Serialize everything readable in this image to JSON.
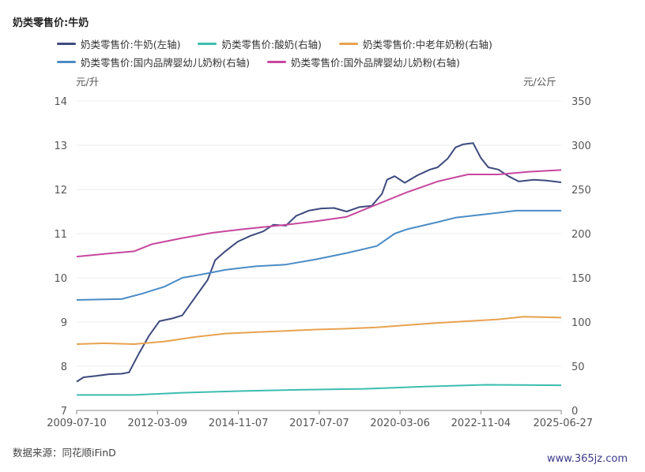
{
  "chart_data": {
    "type": "line",
    "title": "奶类零售价:牛奶",
    "y_left_unit": "元/升",
    "y_right_unit": "元/公斤",
    "ylim_left": [
      7,
      14
    ],
    "yticks_left": [
      "14",
      "13",
      "12",
      "11",
      "10",
      "9",
      "8",
      "7"
    ],
    "ylim_right": [
      0,
      350
    ],
    "yticks_right": [
      "350",
      "300",
      "250",
      "200",
      "150",
      "100",
      "50",
      "0"
    ],
    "x_range": [
      "2009-07-10",
      "2025-06-27"
    ],
    "xticks": [
      "2009-07-10",
      "2012-03-09",
      "2014-11-07",
      "2017-07-07",
      "2020-03-06",
      "2022-11-04",
      "2025-06-27"
    ],
    "grid": "horizontal",
    "legend_position": "top",
    "series": [
      {
        "name": "奶类零售价:牛奶(左轴)",
        "axis": "left",
        "color": "#3d4a7e",
        "points": [
          [
            "2009-07-10",
            7.65
          ],
          [
            "2009-10-01",
            7.75
          ],
          [
            "2010-03-01",
            7.78
          ],
          [
            "2010-08-01",
            7.82
          ],
          [
            "2011-01-01",
            7.83
          ],
          [
            "2011-04-01",
            7.86
          ],
          [
            "2011-08-01",
            8.3
          ],
          [
            "2011-12-01",
            8.7
          ],
          [
            "2012-04-01",
            9.02
          ],
          [
            "2012-09-01",
            9.08
          ],
          [
            "2013-01-01",
            9.15
          ],
          [
            "2013-06-01",
            9.55
          ],
          [
            "2013-11-01",
            9.95
          ],
          [
            "2014-02-01",
            10.4
          ],
          [
            "2014-06-01",
            10.6
          ],
          [
            "2014-11-01",
            10.82
          ],
          [
            "2015-04-01",
            10.95
          ],
          [
            "2015-09-01",
            11.05
          ],
          [
            "2016-01-01",
            11.2
          ],
          [
            "2016-06-01",
            11.18
          ],
          [
            "2016-10-01",
            11.4
          ],
          [
            "2017-03-01",
            11.52
          ],
          [
            "2017-08-01",
            11.57
          ],
          [
            "2018-01-01",
            11.58
          ],
          [
            "2018-06-01",
            11.5
          ],
          [
            "2018-11-01",
            11.6
          ],
          [
            "2019-04-01",
            11.63
          ],
          [
            "2019-08-01",
            11.9
          ],
          [
            "2019-10-01",
            12.22
          ],
          [
            "2020-01-01",
            12.3
          ],
          [
            "2020-05-01",
            12.15
          ],
          [
            "2020-10-01",
            12.32
          ],
          [
            "2021-03-01",
            12.45
          ],
          [
            "2021-06-01",
            12.5
          ],
          [
            "2021-10-01",
            12.7
          ],
          [
            "2022-01-01",
            12.95
          ],
          [
            "2022-04-01",
            13.02
          ],
          [
            "2022-08-01",
            13.05
          ],
          [
            "2022-11-01",
            12.72
          ],
          [
            "2023-02-01",
            12.5
          ],
          [
            "2023-06-01",
            12.45
          ],
          [
            "2023-10-01",
            12.3
          ],
          [
            "2024-02-01",
            12.18
          ],
          [
            "2024-08-01",
            12.22
          ],
          [
            "2025-01-01",
            12.2
          ],
          [
            "2025-06-27",
            12.16
          ]
        ]
      },
      {
        "name": "奶类零售价:酸奶(右轴)",
        "axis": "right",
        "color": "#3dbdb0",
        "points": [
          [
            "2009-07-10",
            17.5
          ],
          [
            "2011-06-01",
            17.5
          ],
          [
            "2013-01-01",
            20.0
          ],
          [
            "2015-01-01",
            22.0
          ],
          [
            "2017-01-01",
            23.5
          ],
          [
            "2019-01-01",
            24.5
          ],
          [
            "2021-01-01",
            27.0
          ],
          [
            "2023-01-01",
            29.0
          ],
          [
            "2025-06-27",
            28.5
          ]
        ]
      },
      {
        "name": "奶类零售价:中老年奶粉(右轴)",
        "axis": "right",
        "color": "#e8a24f",
        "points": [
          [
            "2009-07-10",
            75.0
          ],
          [
            "2010-06-01",
            76.0
          ],
          [
            "2011-06-01",
            75.0
          ],
          [
            "2012-06-01",
            78.0
          ],
          [
            "2013-06-01",
            83.0
          ],
          [
            "2014-06-01",
            87.0
          ],
          [
            "2015-06-01",
            88.5
          ],
          [
            "2016-06-01",
            90.0
          ],
          [
            "2017-06-01",
            91.5
          ],
          [
            "2018-06-01",
            92.5
          ],
          [
            "2019-06-01",
            94.0
          ],
          [
            "2020-06-01",
            96.5
          ],
          [
            "2021-06-01",
            99.0
          ],
          [
            "2022-06-01",
            101.0
          ],
          [
            "2023-06-01",
            103.0
          ],
          [
            "2024-04-01",
            106.0
          ],
          [
            "2025-06-27",
            105.0
          ]
        ]
      },
      {
        "name": "奶类零售价:国内品牌婴幼儿奶粉(右轴)",
        "axis": "right",
        "color": "#4a8cc6",
        "points": [
          [
            "2009-07-10",
            125.0
          ],
          [
            "2011-01-01",
            126.0
          ],
          [
            "2011-09-01",
            132.0
          ],
          [
            "2012-06-01",
            140.0
          ],
          [
            "2013-01-01",
            150.0
          ],
          [
            "2013-09-01",
            154.0
          ],
          [
            "2014-06-01",
            159.0
          ],
          [
            "2015-06-01",
            163.0
          ],
          [
            "2016-06-01",
            165.0
          ],
          [
            "2017-06-01",
            171.0
          ],
          [
            "2018-06-01",
            178.0
          ],
          [
            "2019-06-01",
            186.0
          ],
          [
            "2020-01-01",
            200.0
          ],
          [
            "2020-06-01",
            205.0
          ],
          [
            "2021-06-01",
            213.0
          ],
          [
            "2022-01-01",
            218.0
          ],
          [
            "2023-01-01",
            222.0
          ],
          [
            "2024-01-01",
            226.0
          ],
          [
            "2025-06-27",
            226.0
          ]
        ]
      },
      {
        "name": "奶类零售价:国外品牌婴幼儿奶粉(右轴)",
        "axis": "right",
        "color": "#c7479f",
        "points": [
          [
            "2009-07-10",
            174.0
          ],
          [
            "2010-06-01",
            177.0
          ],
          [
            "2011-06-01",
            180.0
          ],
          [
            "2012-01-01",
            188.0
          ],
          [
            "2013-01-01",
            195.0
          ],
          [
            "2014-01-01",
            201.0
          ],
          [
            "2015-01-01",
            205.0
          ],
          [
            "2016-06-01",
            210.0
          ],
          [
            "2017-06-01",
            214.0
          ],
          [
            "2018-06-01",
            219.0
          ],
          [
            "2019-06-01",
            233.0
          ],
          [
            "2020-06-01",
            247.0
          ],
          [
            "2021-06-01",
            259.0
          ],
          [
            "2022-06-01",
            267.0
          ],
          [
            "2023-06-01",
            267.0
          ],
          [
            "2024-06-01",
            270.0
          ],
          [
            "2025-06-27",
            272.0
          ]
        ]
      }
    ]
  },
  "footer": {
    "source": "数据来源：同花顺iFinD",
    "watermark": "www.365jz.com"
  }
}
